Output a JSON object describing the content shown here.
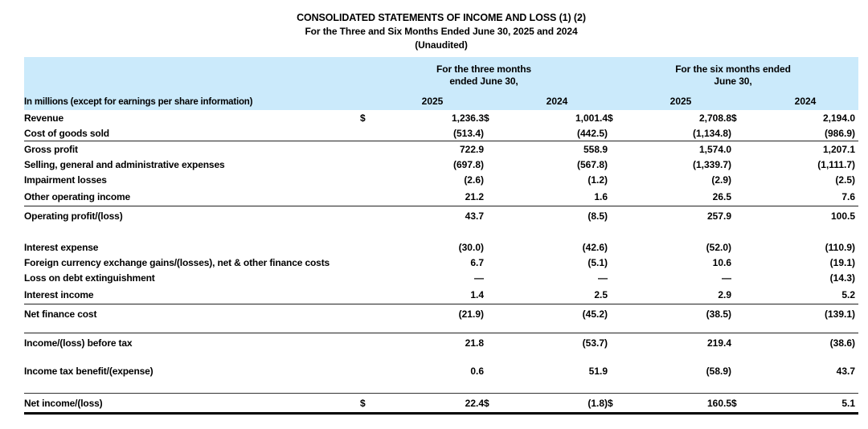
{
  "title": "CONSOLIDATED STATEMENTS OF INCOME AND LOSS (1) (2)",
  "subtitle": "For the Three and Six Months Ended June 30, 2025 and 2024",
  "unaudited_note": "(Unaudited)",
  "colors": {
    "header_bg": "#cbeafb"
  },
  "table": {
    "unit_note": "In millions (except for earnings per share information)",
    "currency_symbol": "$",
    "group_headers": [
      {
        "line1": "For the three months",
        "line2": "ended June 30,"
      },
      {
        "line1": "For the six months ended",
        "line2": "June 30,"
      }
    ],
    "year_columns": [
      "2025",
      "2024",
      "2025",
      "2024"
    ],
    "rows": [
      {
        "label": "Revenue",
        "dollar": true,
        "values": [
          "1,236.3",
          "1,001.4",
          "2,708.8",
          "2,194.0"
        ]
      },
      {
        "label": "Cost of goods sold",
        "rule_below": true,
        "values": [
          "(513.4)",
          "(442.5)",
          "(1,134.8)",
          "(986.9)"
        ]
      },
      {
        "label": "Gross profit",
        "values": [
          "722.9",
          "558.9",
          "1,574.0",
          "1,207.1"
        ]
      },
      {
        "label": "Selling, general and administrative expenses",
        "values": [
          "(697.8)",
          "(567.8)",
          "(1,339.7)",
          "(1,111.7)"
        ]
      },
      {
        "label": "Impairment losses",
        "values": [
          "(2.6)",
          "(1.2)",
          "(2.9)",
          "(2.5)"
        ]
      },
      {
        "label": "Other operating income",
        "rule_below": true,
        "tall": true,
        "values": [
          "21.2",
          "1.6",
          "26.5",
          "7.6"
        ]
      },
      {
        "label": "Operating profit/(loss)",
        "tall": true,
        "values": [
          "43.7",
          "(8.5)",
          "257.9",
          "100.5"
        ]
      },
      {
        "label": "Interest expense",
        "gap_before": "lg",
        "values": [
          "(30.0)",
          "(42.6)",
          "(52.0)",
          "(110.9)"
        ]
      },
      {
        "label": "Foreign currency exchange gains/(losses), net & other finance costs",
        "values": [
          "6.7",
          "(5.1)",
          "10.6",
          "(19.1)"
        ]
      },
      {
        "label": "Loss on debt extinguishment",
        "values": [
          "—",
          "—",
          "—",
          "(14.3)"
        ]
      },
      {
        "label": "Interest income",
        "rule_below": true,
        "tall": true,
        "values": [
          "1.4",
          "2.5",
          "2.9",
          "5.2"
        ]
      },
      {
        "label": "Net finance cost",
        "tall": true,
        "values": [
          "(21.9)",
          "(45.2)",
          "(38.5)",
          "(139.1)"
        ]
      },
      {
        "label": "Income/(loss) before tax",
        "gap_before": "sm",
        "rule_above": true,
        "tall": true,
        "values": [
          "21.8",
          "(53.7)",
          "219.4",
          "(38.6)"
        ]
      },
      {
        "label": "Income tax benefit/(expense)",
        "gap_before": "sm",
        "tall": true,
        "values": [
          "0.6",
          "51.9",
          "(58.9)",
          "43.7"
        ]
      },
      {
        "label": "Net income/(loss)",
        "gap_before": "md",
        "net_total": true,
        "dollar": true,
        "tall": true,
        "values": [
          "22.4",
          "(1.8)",
          "160.5",
          "5.1"
        ]
      }
    ]
  }
}
